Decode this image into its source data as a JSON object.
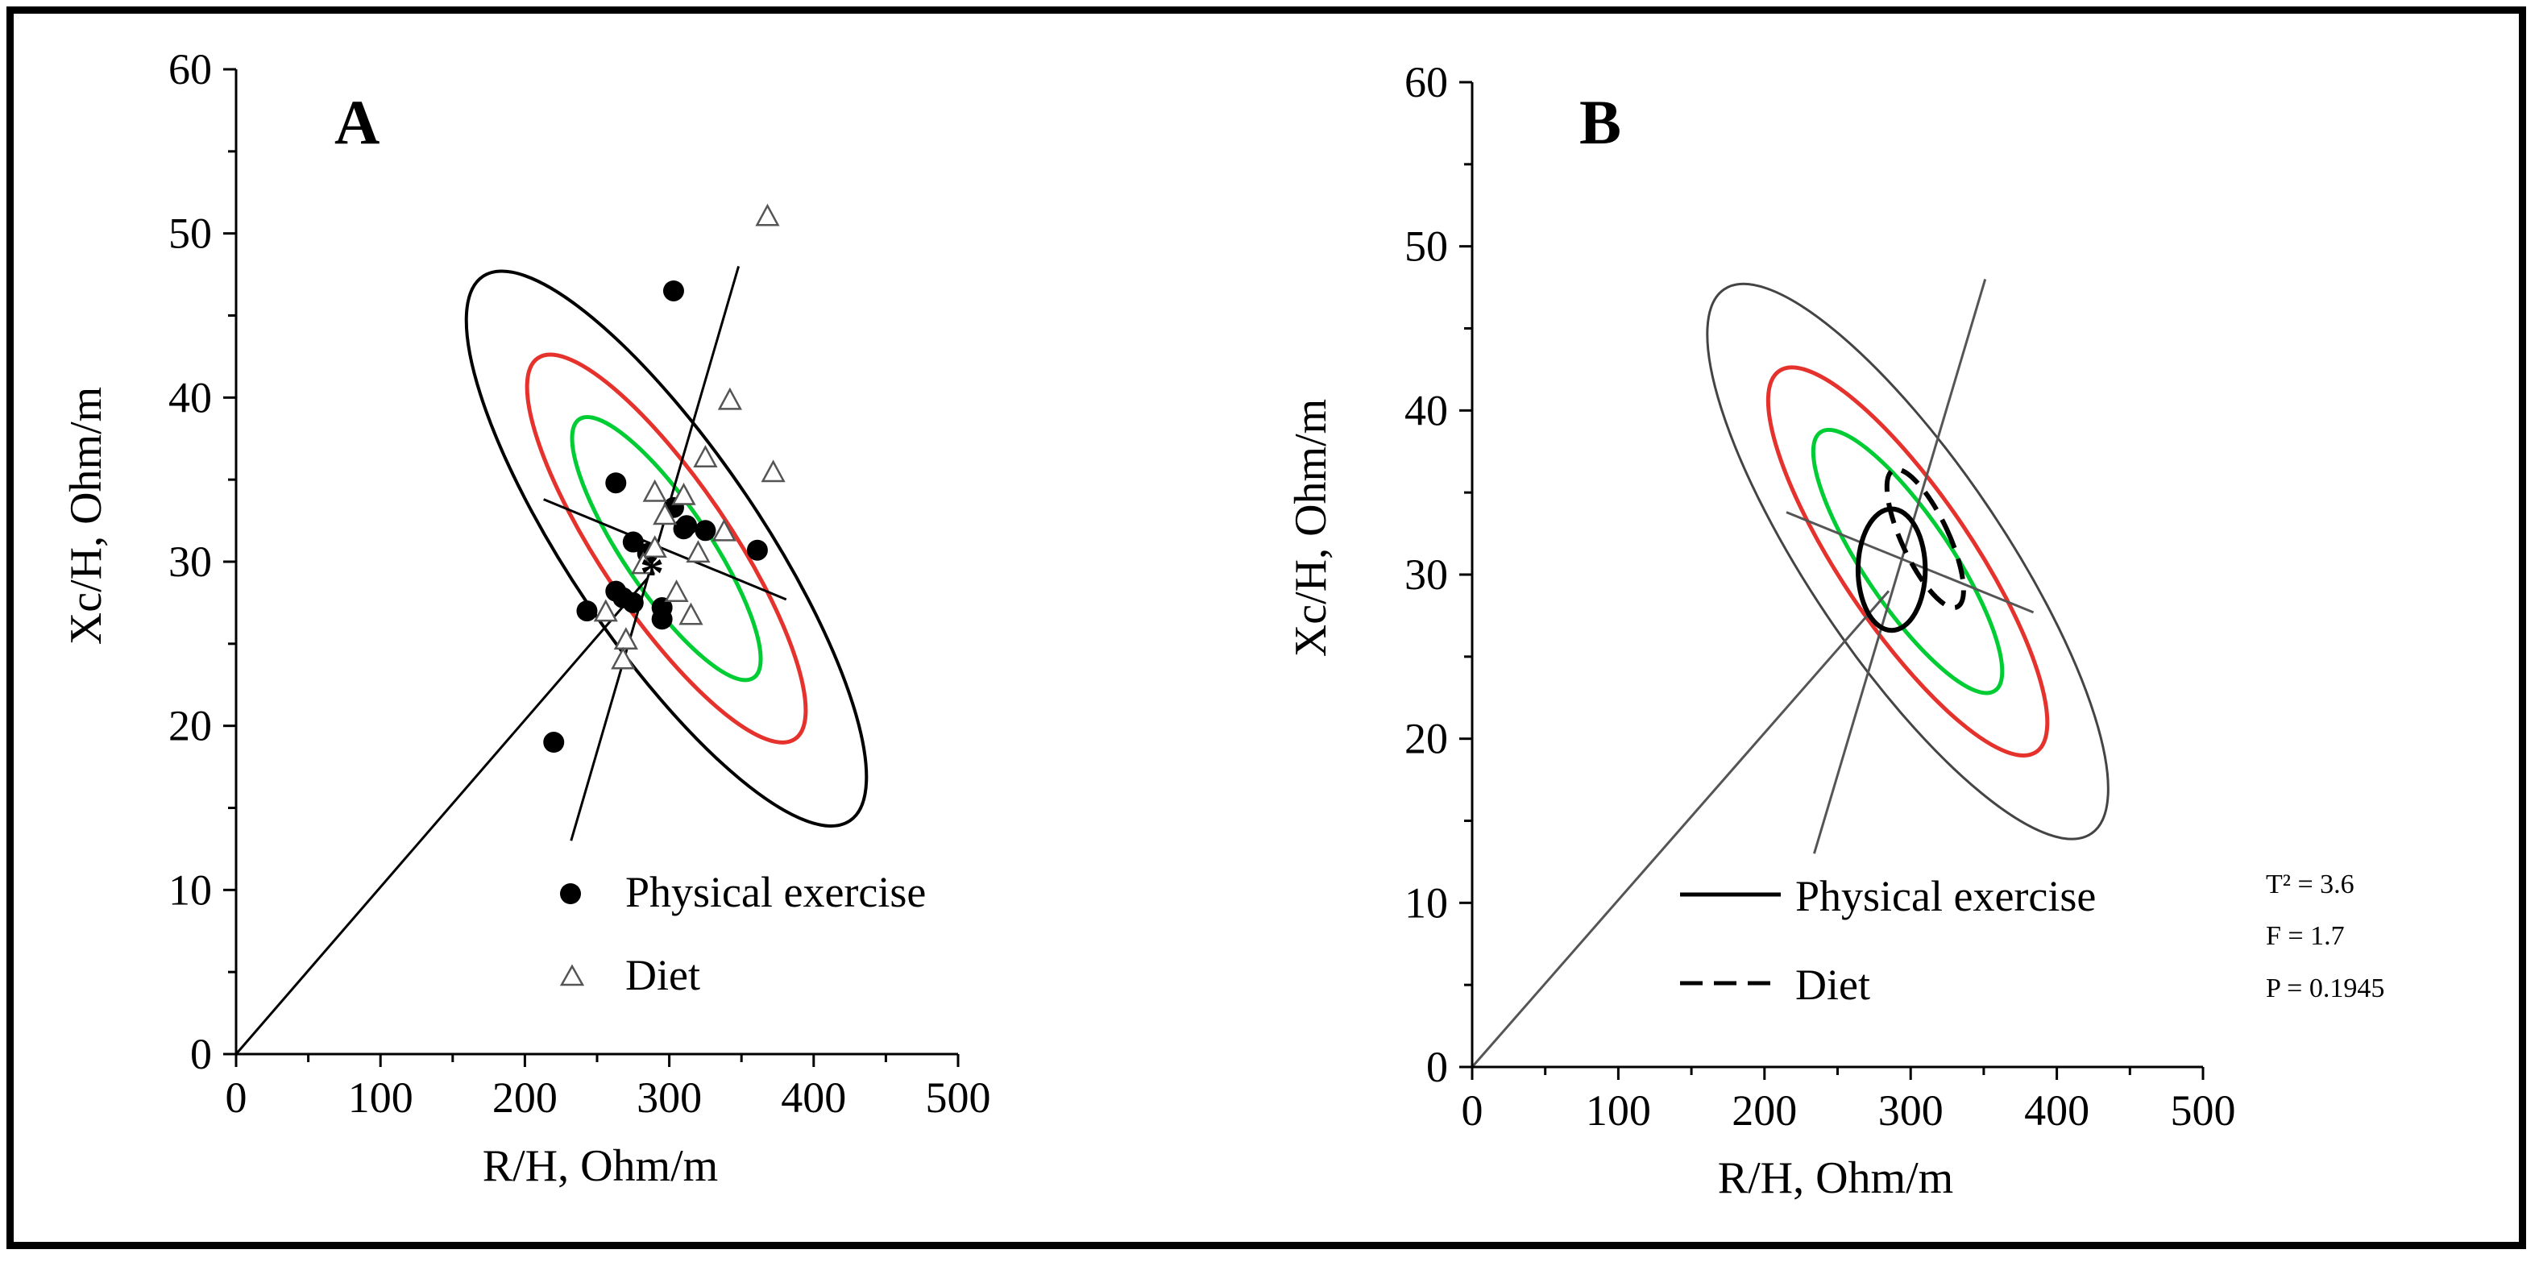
{
  "chart_data": [
    {
      "type": "scatter",
      "panel_label": "A",
      "xlabel": "R/H, Ohm/m",
      "ylabel": "Xc/H, Ohm/m",
      "xlim": [
        0,
        500
      ],
      "ylim": [
        0,
        60
      ],
      "x_ticks": [
        "0",
        "100",
        "200",
        "300",
        "400",
        "500"
      ],
      "y_ticks": [
        "0",
        "10",
        "20",
        "30",
        "40",
        "50",
        "60"
      ],
      "colors": {
        "ellipse_50": "#00cc33",
        "ellipse_75": "#e6322c",
        "ellipse_95": "#000000"
      },
      "reference_ellipses": [
        {
          "percentile": 50,
          "color": "#00cc33",
          "center": [
            298,
            30.8
          ],
          "major_half": 9.5,
          "minor_half": 60,
          "angle": 62
        },
        {
          "percentile": 75,
          "color": "#e6322c",
          "center": [
            298,
            30.8
          ],
          "major_half": 14.0,
          "minor_half": 90,
          "angle": 62
        },
        {
          "percentile": 95,
          "color": "#000000",
          "center": [
            298,
            30.8
          ],
          "major_half": 20.0,
          "minor_half": 133,
          "angle": 62
        }
      ],
      "axes_lines": [
        {
          "from": [
            0,
            0
          ],
          "to": [
            285,
            29
          ]
        },
        {
          "from": [
            232,
            13
          ],
          "to": [
            348,
            48
          ]
        },
        {
          "from": [
            213,
            33.8
          ],
          "to": [
            381,
            27.7
          ]
        }
      ],
      "series": [
        {
          "name": "Physical exercise",
          "marker": "filled-circle",
          "points": [
            [
              303,
              46.5
            ],
            [
              220,
              19
            ],
            [
              243,
              27
            ],
            [
              263,
              34.8
            ],
            [
              263,
              28.2
            ],
            [
              268,
              27.8
            ],
            [
              275,
              27.5
            ],
            [
              275,
              31.2
            ],
            [
              285,
              30.5
            ],
            [
              295,
              27.2
            ],
            [
              295,
              26.5
            ],
            [
              303,
              33.3
            ],
            [
              310,
              32
            ],
            [
              312,
              32.2
            ],
            [
              325,
              31.9
            ],
            [
              361,
              30.7
            ]
          ]
        },
        {
          "name": "Diet",
          "marker": "open-triangle",
          "points": [
            [
              368,
              51
            ],
            [
              342,
              39.8
            ],
            [
              325,
              36.3
            ],
            [
              372,
              35.4
            ],
            [
              290,
              34.2
            ],
            [
              310,
              34
            ],
            [
              297,
              32.8
            ],
            [
              338,
              31.8
            ],
            [
              290,
              30.8
            ],
            [
              282,
              29.8
            ],
            [
              320,
              30.5
            ],
            [
              305,
              28.1
            ],
            [
              315,
              26.7
            ],
            [
              256,
              26.9
            ],
            [
              270,
              25.2
            ],
            [
              268,
              24
            ]
          ]
        }
      ],
      "mean_marker": {
        "label": "*",
        "x": 288,
        "y": 29.4
      }
    },
    {
      "type": "line",
      "panel_label": "B",
      "xlabel": "R/H, Ohm/m",
      "ylabel": "Xc/H, Ohm/m",
      "xlim": [
        0,
        500
      ],
      "ylim": [
        0,
        60
      ],
      "x_ticks": [
        "0",
        "100",
        "200",
        "300",
        "400",
        "500"
      ],
      "y_ticks": [
        "0",
        "10",
        "20",
        "30",
        "40",
        "50",
        "60"
      ],
      "reference_ellipses": [
        {
          "percentile": 50,
          "color": "#00cc33",
          "center": [
            298,
            30.8
          ],
          "major_half": 9.5,
          "minor_half": 60,
          "angle": 62
        },
        {
          "percentile": 75,
          "color": "#e6322c",
          "center": [
            298,
            30.8
          ],
          "major_half": 14.0,
          "minor_half": 90,
          "angle": 62
        },
        {
          "percentile": 95,
          "color": "#444444",
          "center": [
            298,
            30.8
          ],
          "major_half": 20.0,
          "minor_half": 133,
          "angle": 62
        }
      ],
      "axes_lines": [
        {
          "from": [
            0,
            0
          ],
          "to": [
            285,
            29
          ]
        },
        {
          "from": [
            234,
            13
          ],
          "to": [
            351,
            48
          ]
        },
        {
          "from": [
            215,
            33.8
          ],
          "to": [
            384,
            27.7
          ]
        }
      ],
      "series": [
        {
          "name": "Physical exercise",
          "line_style": "solid",
          "center": [
            287,
            30.3
          ],
          "rx": 23,
          "ry": 3.7,
          "angle": 0
        },
        {
          "name": "Diet",
          "line_style": "dashed",
          "center": [
            310,
            32.2
          ],
          "rx": 16,
          "ry": 4.6,
          "angle": 25
        }
      ],
      "stats": {
        "t2": "T² = 3.6",
        "f": "F = 1.7",
        "p": "P = 0.1945"
      }
    }
  ]
}
